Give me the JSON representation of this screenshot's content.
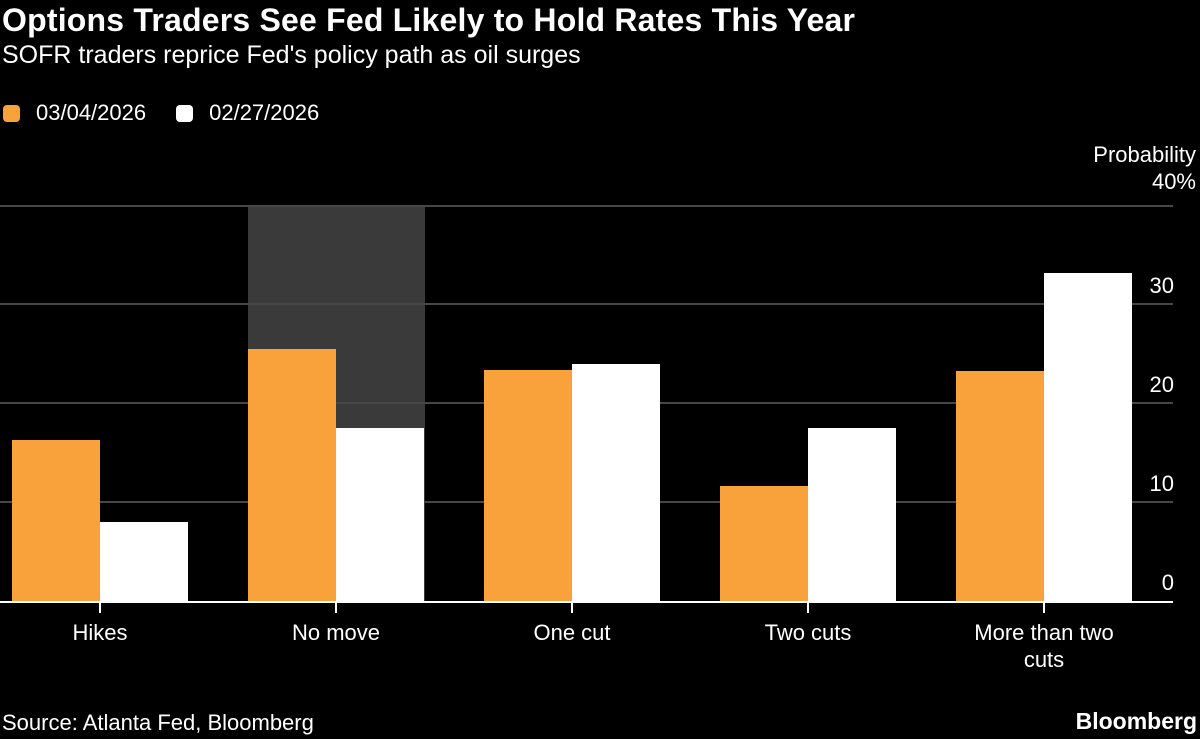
{
  "header": {
    "title": "Options Traders See Fed Likely to Hold Rates This Year",
    "subtitle": "SOFR traders reprice Fed's policy path as oil surges"
  },
  "chart_data": {
    "type": "bar",
    "categories": [
      "Hikes",
      "No move",
      "One cut",
      "Two cuts",
      "More than two cuts"
    ],
    "series": [
      {
        "name": "03/04/2026",
        "color": "#F9A13A",
        "values": [
          16.3,
          25.5,
          23.3,
          11.6,
          23.2
        ]
      },
      {
        "name": "02/27/2026",
        "color": "#FFFFFF",
        "values": [
          8.0,
          17.5,
          23.9,
          17.5,
          33.1
        ]
      }
    ],
    "ylabel": "Probability",
    "ytick_top_label": "40%",
    "yticks": [
      40,
      30,
      20,
      10,
      0
    ],
    "ylim": [
      0,
      40
    ],
    "grid": "horizontal",
    "legend_position": "top-left",
    "highlighted_category": "No move",
    "highlight_color": "#3A3A3A",
    "background_color": "#000000",
    "text_color": "#FFFFFF"
  },
  "footer": {
    "source": "Source: Atlanta Fed, Bloomberg",
    "brand": "Bloomberg"
  }
}
